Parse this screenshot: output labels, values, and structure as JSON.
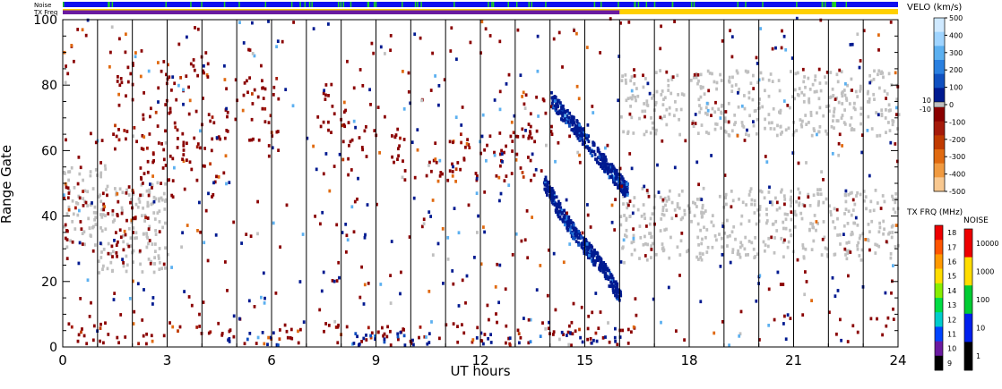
{
  "chart_data": {
    "type": "heatmap",
    "title": "",
    "xlabel": "UT hours",
    "ylabel": "Range Gate",
    "xlim": [
      0,
      24
    ],
    "ylim": [
      0,
      100
    ],
    "x_ticks": [
      0,
      3,
      6,
      9,
      12,
      15,
      18,
      21,
      24
    ],
    "x_tick_labels": [
      "0",
      "3",
      "6",
      "9",
      "12",
      "15",
      "18",
      "21",
      "24"
    ],
    "y_ticks": [
      0,
      20,
      40,
      60,
      80,
      100
    ],
    "y_tick_labels": [
      "0",
      "20",
      "40",
      "60",
      "80",
      "100"
    ],
    "scan_boundaries_hours": [
      1,
      2,
      3,
      4,
      5,
      6,
      7,
      8,
      9,
      10,
      11,
      12,
      13,
      14,
      15,
      16,
      17,
      18,
      19,
      20,
      21,
      22,
      23
    ],
    "status_bars": {
      "noise_label": "Noise",
      "txfreq_label": "TX Freq",
      "noise_color": "#1010ee",
      "noise_spike_color": "#20d020",
      "txfreq_segments": [
        {
          "start": 0,
          "end": 16,
          "color": "#6a1aa0"
        },
        {
          "start": 16,
          "end": 24,
          "color": "#ffd000"
        }
      ]
    },
    "velocity_scale": {
      "label": "VELO (km/s)",
      "ticks": [
        "500",
        "400",
        "300",
        "200",
        "100",
        "0",
        "-100",
        "-200",
        "-300",
        "-400",
        "-500"
      ],
      "gs_labels": [
        "10",
        "-10"
      ],
      "colors_positive": [
        "#cfe9ff",
        "#9fd4ff",
        "#5cb0f0",
        "#2a80e0",
        "#1050c0",
        "#001a90"
      ],
      "colors_negative": [
        "#8a0000",
        "#a51a0a",
        "#c03a00",
        "#e06a10",
        "#f09a40",
        "#f8c890"
      ],
      "ground_scatter_color": "#c0c0c0"
    },
    "txfreq_scale": {
      "label": "TX FRQ (MHz)",
      "ticks": [
        "18",
        "17",
        "16",
        "15",
        "14",
        "13",
        "12",
        "11",
        "10",
        "9"
      ],
      "colors": [
        "#ee0000",
        "#ff5500",
        "#ff9900",
        "#ffdd00",
        "#88ee00",
        "#00dd44",
        "#00cccc",
        "#0044ff",
        "#6a1aa0",
        "#000000"
      ]
    },
    "noise_scale": {
      "label": "NOISE",
      "ticks": [
        "10000",
        "1000",
        "100",
        "10",
        "1"
      ],
      "colors": [
        "#ee0000",
        "#ffdd00",
        "#00cc33",
        "#0020ee",
        "#000000"
      ]
    },
    "regions": [
      {
        "kind": "gs",
        "color": "#c0c0c0",
        "t0": 0,
        "t1": 1.2,
        "g0": 30,
        "g1": 55
      },
      {
        "kind": "neg",
        "color": "#8a0000",
        "t0": 0,
        "t1": 0.6,
        "g0": 30,
        "g1": 55
      },
      {
        "kind": "gs",
        "color": "#c0c0c0",
        "t0": 1.0,
        "t1": 3.0,
        "g0": 22,
        "g1": 50
      },
      {
        "kind": "neg",
        "color": "#8a0000",
        "t0": 1.1,
        "t1": 2.5,
        "g0": 24,
        "g1": 50
      },
      {
        "kind": "neg",
        "color": "#8a0000",
        "t0": 1.3,
        "t1": 2.3,
        "g0": 62,
        "g1": 90
      },
      {
        "kind": "neg",
        "color": "#8a0000",
        "t0": 2.2,
        "t1": 4.6,
        "g0": 45,
        "g1": 72
      },
      {
        "kind": "neg",
        "color": "#8a0000",
        "t0": 2.8,
        "t1": 4.2,
        "g0": 72,
        "g1": 88
      },
      {
        "kind": "neg",
        "color": "#8a0000",
        "t0": 4.6,
        "t1": 6.2,
        "g0": 62,
        "g1": 82
      },
      {
        "kind": "neg",
        "color": "#8a0000",
        "t0": 7.0,
        "t1": 8.2,
        "g0": 65,
        "g1": 80
      },
      {
        "kind": "neg",
        "color": "#8a0000",
        "t0": 8.0,
        "t1": 9.8,
        "g0": 55,
        "g1": 68
      },
      {
        "kind": "neg",
        "color": "#8a0000",
        "t0": 10.5,
        "t1": 13.8,
        "g0": 50,
        "g1": 65
      },
      {
        "kind": "neg",
        "color": "#8a0000",
        "t0": 13.0,
        "t1": 14.2,
        "g0": 62,
        "g1": 78
      },
      {
        "kind": "gs",
        "color": "#c0c0c0",
        "t0": 16.0,
        "t1": 24.0,
        "g0": 26,
        "g1": 48
      },
      {
        "kind": "gs",
        "color": "#c0c0c0",
        "t0": 16.0,
        "t1": 24.0,
        "g0": 64,
        "g1": 84
      },
      {
        "kind": "neg",
        "color": "#8a0000",
        "t0": 0,
        "t1": 16.5,
        "g0": 0,
        "g1": 7
      },
      {
        "kind": "pos",
        "color": "#001a90",
        "t0": 4.5,
        "t1": 16.0,
        "g0": 0,
        "g1": 4
      }
    ],
    "traces": [
      {
        "kind": "pos",
        "color": "#001a90",
        "points": [
          [
            14.0,
            75
          ],
          [
            14.6,
            68
          ],
          [
            15.2,
            60
          ],
          [
            15.8,
            52
          ],
          [
            16.2,
            47
          ]
        ]
      },
      {
        "kind": "pos",
        "color": "#001a90",
        "points": [
          [
            13.8,
            50
          ],
          [
            14.3,
            40
          ],
          [
            14.9,
            31
          ],
          [
            15.4,
            25
          ],
          [
            16.0,
            15
          ]
        ]
      }
    ]
  }
}
